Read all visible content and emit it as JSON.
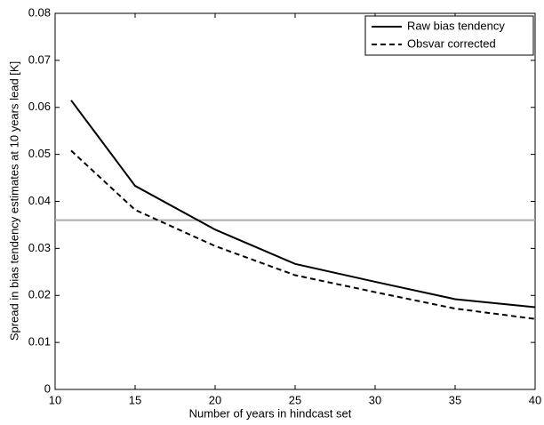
{
  "chart_data": {
    "type": "line",
    "xlabel": "Number of years in hindcast set",
    "ylabel": "Spread in bias tendency estimates at 10 years lead [K]",
    "x": [
      11,
      15,
      20,
      25,
      30,
      35,
      40
    ],
    "series": [
      {
        "name": "Raw bias tendency",
        "color": "#000000",
        "style": "solid",
        "values": [
          0.0615,
          0.0433,
          0.034,
          0.0267,
          0.0229,
          0.0192,
          0.0175
        ]
      },
      {
        "name": "Obsvar corrected",
        "color": "#000000",
        "style": "dashed",
        "values": [
          0.0508,
          0.0382,
          0.0305,
          0.0243,
          0.0207,
          0.0172,
          0.015
        ]
      }
    ],
    "reference_line": {
      "value": 0.036,
      "color": "#aaaaaa"
    },
    "xlim": [
      10,
      40
    ],
    "ylim": [
      0,
      0.08
    ],
    "xticks": [
      10,
      15,
      20,
      25,
      30,
      35,
      40
    ],
    "yticks": [
      0,
      0.01,
      0.02,
      0.03,
      0.04,
      0.05,
      0.06,
      0.07,
      0.08
    ],
    "legend": "upper right"
  }
}
